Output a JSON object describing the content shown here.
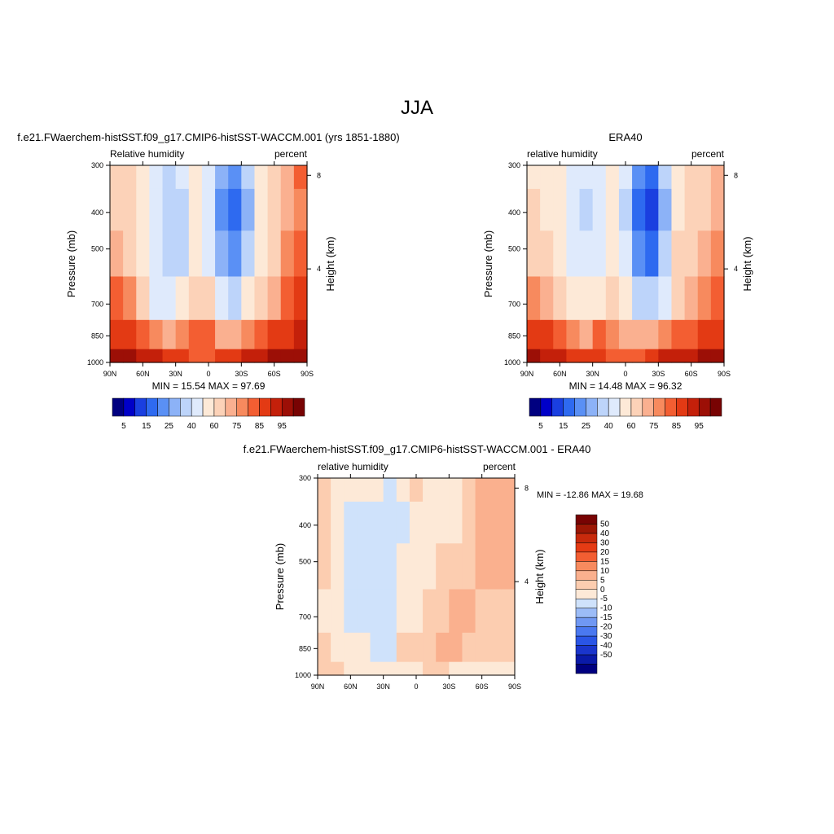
{
  "figure_title": "JJA",
  "colors": {
    "full_scale": [
      "#000080",
      "#0000c8",
      "#1a3fe0",
      "#2e6af0",
      "#5a90f5",
      "#8cb2f7",
      "#bdd4fa",
      "#dfeafc",
      "#fde9d7",
      "#fcd2b8",
      "#fab090",
      "#f78a5e",
      "#f35e32",
      "#e33a14",
      "#c4200a",
      "#9c0f06",
      "#780303"
    ],
    "diff_scale": [
      "#000080",
      "#0a1aa8",
      "#1a35cc",
      "#2a55e6",
      "#4a78f0",
      "#7098f3",
      "#9cbcf7",
      "#cfe2fb",
      "#fde9d7",
      "#fccdb0",
      "#fab08e",
      "#f78a5e",
      "#f35e32",
      "#e53b14",
      "#c82a0c",
      "#9c1705",
      "#780303"
    ]
  },
  "panels": [
    {
      "title": "f.e21.FWaerchem-histSST.f09_g17.CMIP6-histSST-WACCM.001 (yrs 1851-1880)",
      "left_label": "Relative humidity",
      "right_label": "percent",
      "ylabel": "Pressure (mb)",
      "y2label": "Height (km)",
      "stats": "MIN =  15.54  MAX =  97.69",
      "colorbar_labels": [
        "5",
        "15",
        "25",
        "40",
        "60",
        "75",
        "85",
        "95"
      ]
    },
    {
      "title": "ERA40",
      "left_label": "relative humidity",
      "right_label": "percent",
      "ylabel": "Pressure (mb)",
      "y2label": "Height (km)",
      "stats": "MIN =  14.48  MAX =  96.32",
      "colorbar_labels": [
        "5",
        "15",
        "25",
        "40",
        "60",
        "75",
        "85",
        "95"
      ]
    },
    {
      "title": "f.e21.FWaerchem-histSST.f09_g17.CMIP6-histSST-WACCM.001 - ERA40",
      "left_label": "relative humidity",
      "right_label": "percent",
      "ylabel": "Pressure (mb)",
      "y2label": "Height (km)",
      "stats": "MIN = -12.86  MAX =  19.68",
      "colorbar_labels": [
        "50",
        "40",
        "30",
        "20",
        "15",
        "10",
        "5",
        "0",
        "-5",
        "-10",
        "-15",
        "-20",
        "-30",
        "-40",
        "-50"
      ]
    }
  ],
  "chart_data": [
    {
      "type": "heatmap",
      "x": [
        "90N",
        "60N",
        "30N",
        "0",
        "30S",
        "60S",
        "90S"
      ],
      "y": [
        300,
        400,
        500,
        700,
        850,
        1000
      ],
      "y2": [
        4,
        8
      ],
      "ytick_labels": [
        "300",
        "400",
        "500",
        "700",
        "850",
        "1000"
      ],
      "y2tick_labels": [
        "4",
        "8"
      ],
      "levels": [
        5,
        10,
        15,
        20,
        25,
        30,
        40,
        50,
        60,
        70,
        75,
        80,
        85,
        90,
        95
      ],
      "min": 15.54,
      "max": 97.69,
      "columns": [
        [
          60,
          65,
          72,
          80,
          88,
          97
        ],
        [
          62,
          65,
          66,
          75,
          86,
          96
        ],
        [
          55,
          50,
          52,
          60,
          82,
          93
        ],
        [
          46,
          40,
          40,
          48,
          76,
          90
        ],
        [
          38,
          32,
          34,
          44,
          72,
          88
        ],
        [
          45,
          38,
          38,
          50,
          78,
          88
        ],
        [
          55,
          54,
          56,
          62,
          80,
          82
        ],
        [
          45,
          45,
          48,
          60,
          80,
          82
        ],
        [
          28,
          22,
          26,
          40,
          72,
          85
        ],
        [
          20,
          17,
          20,
          35,
          72,
          88
        ],
        [
          30,
          26,
          32,
          50,
          78,
          90
        ],
        [
          50,
          50,
          55,
          65,
          82,
          93
        ],
        [
          62,
          62,
          66,
          74,
          85,
          95
        ],
        [
          72,
          74,
          76,
          80,
          88,
          96
        ],
        [
          80,
          78,
          80,
          85,
          90,
          96
        ]
      ]
    },
    {
      "type": "heatmap",
      "x": [
        "90N",
        "60N",
        "30N",
        "0",
        "30S",
        "60S",
        "90S"
      ],
      "y": [
        300,
        400,
        500,
        700,
        850,
        1000
      ],
      "y2": [
        4,
        8
      ],
      "ytick_labels": [
        "300",
        "400",
        "500",
        "700",
        "850",
        "1000"
      ],
      "y2tick_labels": [
        "4",
        "8"
      ],
      "levels": [
        5,
        10,
        15,
        20,
        25,
        30,
        40,
        50,
        60,
        70,
        75,
        80,
        85,
        90,
        95
      ],
      "min": 14.48,
      "max": 96.32,
      "columns": [
        [
          58,
          62,
          66,
          75,
          85,
          95
        ],
        [
          55,
          58,
          62,
          72,
          86,
          93
        ],
        [
          52,
          52,
          55,
          62,
          82,
          90
        ],
        [
          45,
          42,
          44,
          52,
          75,
          88
        ],
        [
          40,
          38,
          40,
          50,
          72,
          86
        ],
        [
          48,
          46,
          48,
          56,
          80,
          88
        ],
        [
          55,
          55,
          56,
          62,
          78,
          82
        ],
        [
          40,
          38,
          40,
          52,
          72,
          80
        ],
        [
          22,
          18,
          20,
          34,
          70,
          82
        ],
        [
          18,
          14,
          18,
          32,
          72,
          86
        ],
        [
          30,
          26,
          30,
          48,
          78,
          90
        ],
        [
          55,
          56,
          60,
          68,
          84,
          93
        ],
        [
          62,
          64,
          66,
          72,
          84,
          94
        ],
        [
          66,
          68,
          72,
          78,
          86,
          95
        ],
        [
          70,
          72,
          75,
          82,
          88,
          95
        ]
      ]
    },
    {
      "type": "heatmap",
      "x": [
        "90N",
        "60N",
        "30N",
        "0",
        "30S",
        "60S",
        "90S"
      ],
      "y": [
        300,
        400,
        500,
        700,
        850,
        1000
      ],
      "y2": [
        4,
        8
      ],
      "ytick_labels": [
        "300",
        "400",
        "500",
        "700",
        "850",
        "1000"
      ],
      "y2tick_labels": [
        "4",
        "8"
      ],
      "levels": [
        -50,
        -40,
        -30,
        -20,
        -15,
        -10,
        -5,
        0,
        5,
        10,
        15,
        20,
        30,
        40,
        50
      ],
      "min": -12.86,
      "max": 19.68,
      "columns": [
        [
          6,
          6,
          6,
          3,
          6,
          8
        ],
        [
          3,
          4,
          2,
          2,
          3,
          8
        ],
        [
          3,
          -2,
          -2,
          -3,
          2,
          4
        ],
        [
          2,
          -1,
          -2,
          -2,
          0,
          4
        ],
        [
          1,
          -4,
          -3,
          -3,
          -1,
          3
        ],
        [
          -1,
          -3,
          -3,
          -2,
          -2,
          1
        ],
        [
          2,
          -1,
          2,
          2,
          5,
          2
        ],
        [
          5,
          2,
          3,
          4,
          6,
          4
        ],
        [
          4,
          3,
          4,
          5,
          8,
          5
        ],
        [
          2,
          3,
          5,
          8,
          12,
          5
        ],
        [
          2,
          3,
          6,
          12,
          14,
          3
        ],
        [
          7,
          7,
          8,
          10,
          6,
          3
        ],
        [
          10,
          10,
          10,
          8,
          6,
          3
        ],
        [
          10,
          11,
          11,
          8,
          7,
          3
        ],
        [
          10,
          12,
          11,
          9,
          8,
          3
        ]
      ]
    }
  ]
}
